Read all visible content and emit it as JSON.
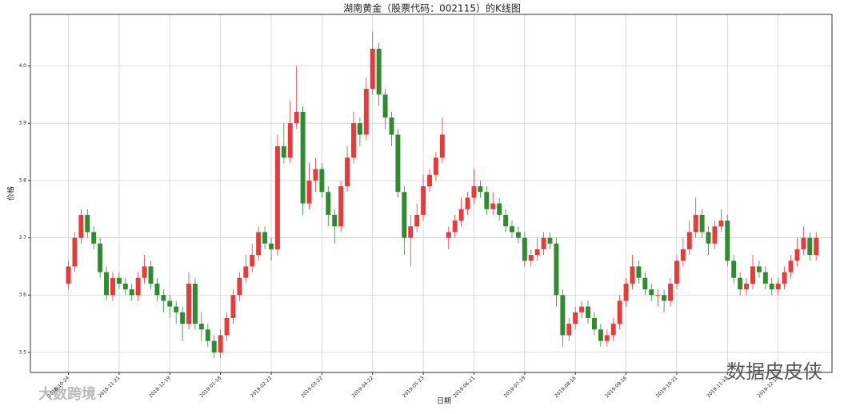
{
  "chart_data": {
    "type": "candlestick",
    "title": "湖南黄金（股票代码：002115）的K线图",
    "x_label": "日期",
    "y_label": "价格",
    "watermark_left": "大数跨境",
    "watermark_right": "数据皮皮侠",
    "up_color": "#e83a3a",
    "down_color": "#2e8b2e",
    "grid": true,
    "ylim": [
      3.465,
      4.09
    ],
    "yticks": [
      3.5,
      3.6,
      3.7,
      3.8,
      3.9,
      {
        "value": 4.0,
        "label": "4.0"
      }
    ],
    "categories": [
      "2018-10-24",
      null,
      null,
      null,
      null,
      null,
      null,
      null,
      "2018-11-21",
      null,
      null,
      null,
      null,
      null,
      null,
      null,
      "2018-12-19",
      null,
      null,
      null,
      null,
      null,
      null,
      null,
      "2019-01-18",
      null,
      null,
      null,
      null,
      null,
      null,
      null,
      "2019-02-22",
      null,
      null,
      null,
      null,
      null,
      null,
      null,
      "2019-03-22",
      null,
      null,
      null,
      null,
      null,
      null,
      null,
      "2019-04-22",
      null,
      null,
      null,
      null,
      null,
      null,
      null,
      "2019-05-23",
      null,
      null,
      null,
      null,
      null,
      null,
      null,
      "2019-06-21",
      null,
      null,
      null,
      null,
      null,
      null,
      null,
      "2019-07-19",
      null,
      null,
      null,
      null,
      null,
      null,
      null,
      "2019-08-16",
      null,
      null,
      null,
      null,
      null,
      null,
      null,
      "2019-09-16",
      null,
      null,
      null,
      null,
      null,
      null,
      null,
      "2019-10-21",
      null,
      null,
      null,
      null,
      null,
      null,
      null,
      "2019-11-18",
      null,
      null,
      null,
      null,
      null,
      null,
      null,
      "2019-12-16",
      null,
      null,
      null,
      null,
      null,
      null
    ],
    "open": [
      3.62,
      3.65,
      3.7,
      3.74,
      3.71,
      3.69,
      3.64,
      3.6,
      3.63,
      3.62,
      3.61,
      3.6,
      3.63,
      3.65,
      3.62,
      3.6,
      3.59,
      3.58,
      3.57,
      3.55,
      3.62,
      3.55,
      3.54,
      3.52,
      3.5,
      3.53,
      3.56,
      3.6,
      3.63,
      3.65,
      3.67,
      3.71,
      3.69,
      3.68,
      3.86,
      3.84,
      3.9,
      3.92,
      3.76,
      3.8,
      3.82,
      3.78,
      3.74,
      3.72,
      3.79,
      3.84,
      3.9,
      3.88,
      3.96,
      4.03,
      3.95,
      3.91,
      3.88,
      3.78,
      3.7,
      3.72,
      3.74,
      3.79,
      3.81,
      3.84,
      3.7,
      3.71,
      3.73,
      3.75,
      3.77,
      3.79,
      3.78,
      3.75,
      3.76,
      3.74,
      3.72,
      3.71,
      3.7,
      3.66,
      3.67,
      3.68,
      3.7,
      3.69,
      3.6,
      3.53,
      3.55,
      3.57,
      3.58,
      3.56,
      3.54,
      3.52,
      3.53,
      3.55,
      3.59,
      3.62,
      3.65,
      3.63,
      3.61,
      3.6,
      3.6,
      3.59,
      3.62,
      3.66,
      3.68,
      3.71,
      3.74,
      3.71,
      3.69,
      3.72,
      3.73,
      3.66,
      3.63,
      3.61,
      3.62,
      3.65,
      3.64,
      3.62,
      3.61,
      3.62,
      3.64,
      3.66,
      3.68,
      3.7,
      3.67
    ],
    "high": [
      3.66,
      3.71,
      3.75,
      3.75,
      3.72,
      3.7,
      3.65,
      3.64,
      3.64,
      3.63,
      3.62,
      3.64,
      3.67,
      3.66,
      3.63,
      3.61,
      3.6,
      3.59,
      3.58,
      3.64,
      3.63,
      3.57,
      3.55,
      3.53,
      3.54,
      3.57,
      3.61,
      3.64,
      3.67,
      3.69,
      3.72,
      3.72,
      3.7,
      3.88,
      3.9,
      3.94,
      4.0,
      3.93,
      3.83,
      3.84,
      3.83,
      3.79,
      3.75,
      3.8,
      3.86,
      3.92,
      3.91,
      3.98,
      4.06,
      4.04,
      3.96,
      3.92,
      3.89,
      3.79,
      3.74,
      3.76,
      3.81,
      3.82,
      3.85,
      3.91,
      3.72,
      3.74,
      3.77,
      3.78,
      3.82,
      3.8,
      3.79,
      3.78,
      3.77,
      3.75,
      3.73,
      3.72,
      3.71,
      3.68,
      3.7,
      3.71,
      3.71,
      3.7,
      3.61,
      3.56,
      3.58,
      3.59,
      3.59,
      3.57,
      3.55,
      3.54,
      3.56,
      3.6,
      3.63,
      3.67,
      3.66,
      3.64,
      3.62,
      3.61,
      3.61,
      3.63,
      3.67,
      3.7,
      3.73,
      3.77,
      3.75,
      3.72,
      3.73,
      3.75,
      3.74,
      3.67,
      3.64,
      3.63,
      3.67,
      3.66,
      3.65,
      3.63,
      3.63,
      3.65,
      3.67,
      3.7,
      3.72,
      3.71,
      3.71
    ],
    "low": [
      3.61,
      3.64,
      3.69,
      3.7,
      3.68,
      3.63,
      3.59,
      3.59,
      3.61,
      3.6,
      3.59,
      3.59,
      3.62,
      3.61,
      3.59,
      3.57,
      3.56,
      3.55,
      3.52,
      3.54,
      3.54,
      3.52,
      3.51,
      3.49,
      3.49,
      3.52,
      3.55,
      3.59,
      3.62,
      3.64,
      3.66,
      3.68,
      3.66,
      3.67,
      3.83,
      3.83,
      3.89,
      3.74,
      3.75,
      3.78,
      3.77,
      3.72,
      3.69,
      3.71,
      3.78,
      3.83,
      3.86,
      3.87,
      3.95,
      3.93,
      3.89,
      3.86,
      3.77,
      3.67,
      3.65,
      3.71,
      3.73,
      3.78,
      3.8,
      3.83,
      3.68,
      3.7,
      3.72,
      3.74,
      3.76,
      3.77,
      3.74,
      3.74,
      3.73,
      3.71,
      3.7,
      3.69,
      3.65,
      3.65,
      3.66,
      3.67,
      3.68,
      3.58,
      3.51,
      3.52,
      3.54,
      3.56,
      3.55,
      3.53,
      3.51,
      3.51,
      3.52,
      3.54,
      3.58,
      3.61,
      3.62,
      3.6,
      3.59,
      3.58,
      3.57,
      3.58,
      3.61,
      3.65,
      3.67,
      3.7,
      3.7,
      3.67,
      3.68,
      3.71,
      3.65,
      3.62,
      3.6,
      3.6,
      3.61,
      3.63,
      3.61,
      3.6,
      3.6,
      3.61,
      3.63,
      3.65,
      3.67,
      3.66,
      3.66
    ],
    "close": [
      3.65,
      3.7,
      3.74,
      3.71,
      3.69,
      3.64,
      3.6,
      3.63,
      3.62,
      3.61,
      3.6,
      3.63,
      3.65,
      3.62,
      3.6,
      3.59,
      3.58,
      3.57,
      3.55,
      3.62,
      3.55,
      3.54,
      3.52,
      3.5,
      3.53,
      3.56,
      3.6,
      3.63,
      3.65,
      3.67,
      3.71,
      3.69,
      3.68,
      3.86,
      3.84,
      3.9,
      3.92,
      3.76,
      3.8,
      3.82,
      3.78,
      3.74,
      3.72,
      3.79,
      3.84,
      3.9,
      3.88,
      3.96,
      4.03,
      3.95,
      3.91,
      3.88,
      3.78,
      3.7,
      3.72,
      3.74,
      3.79,
      3.81,
      3.84,
      3.88,
      3.71,
      3.73,
      3.75,
      3.77,
      3.79,
      3.78,
      3.75,
      3.76,
      3.74,
      3.72,
      3.71,
      3.7,
      3.66,
      3.67,
      3.68,
      3.7,
      3.69,
      3.6,
      3.53,
      3.55,
      3.57,
      3.58,
      3.56,
      3.54,
      3.52,
      3.53,
      3.55,
      3.59,
      3.62,
      3.65,
      3.63,
      3.61,
      3.6,
      3.6,
      3.59,
      3.62,
      3.66,
      3.68,
      3.71,
      3.74,
      3.71,
      3.69,
      3.72,
      3.73,
      3.66,
      3.63,
      3.61,
      3.62,
      3.65,
      3.64,
      3.62,
      3.61,
      3.62,
      3.64,
      3.66,
      3.68,
      3.7,
      3.67,
      3.7
    ]
  }
}
